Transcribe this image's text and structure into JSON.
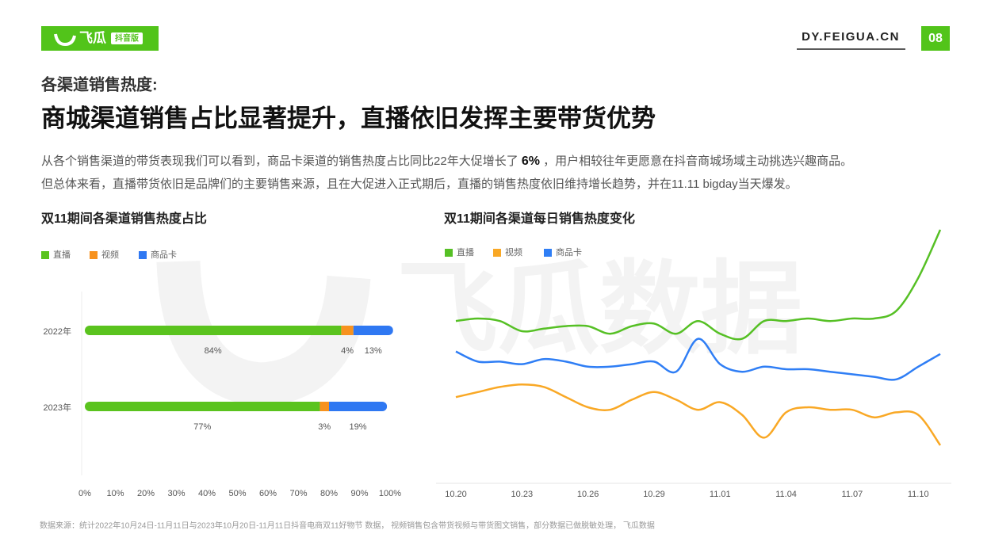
{
  "header": {
    "logo": "飞瓜",
    "logo_badge": "抖音版",
    "site": "DY.FEIGUA.CN",
    "page": "08"
  },
  "heading": {
    "kicker": "各渠道销售热度:",
    "title": "商城渠道销售占比显著提升，直播依旧发挥主要带货优势"
  },
  "intro": {
    "line1_before": "从各个销售渠道的带货表现我们可以看到，商品卡渠道的销售热度占比同比22年大促增长了 ",
    "highlight": "6%",
    "line1_after": " ，用户相较往年更愿意在抖音商城场域主动挑选兴趣商品。",
    "line2": "但总体来看，直播带货依旧是品牌们的主要销售来源，且在大促进入正式期后，直播的销售热度依旧维持增长趋势，并在11.11 bigday当天爆发。"
  },
  "watermark": "飞瓜数据",
  "source": "数据来源：统计2022年10月24日-11月11日与2023年10月20日-11月11日抖音电商双11好物节 数据， 视频销售包含带货视频与带货图文销售，部分数据已做脱敏处理， 飞瓜数据",
  "chart_data": [
    {
      "type": "bar",
      "orientation": "horizontal",
      "stacked": true,
      "title": "双11期间各渠道销售热度占比",
      "categories": [
        "2022年",
        "2023年"
      ],
      "series": [
        {
          "name": "直播",
          "color": "#5ac31e",
          "values": [
            84,
            77
          ],
          "value_labels": [
            "84%",
            "77%"
          ]
        },
        {
          "name": "视频",
          "color": "#f7921e",
          "values": [
            4,
            3
          ],
          "value_labels": [
            "4%",
            "3%"
          ]
        },
        {
          "name": "商品卡",
          "color": "#2f78f2",
          "values": [
            13,
            19
          ],
          "value_labels": [
            "13%",
            "19%"
          ]
        }
      ],
      "xlim": [
        0,
        100
      ],
      "xticks": [
        {
          "value": 0,
          "label": "0%"
        },
        {
          "value": 10,
          "label": "10%"
        },
        {
          "value": 20,
          "label": "20%"
        },
        {
          "value": 30,
          "label": "30%"
        },
        {
          "value": 40,
          "label": "40%"
        },
        {
          "value": 50,
          "label": "50%"
        },
        {
          "value": 60,
          "label": "60%"
        },
        {
          "value": 70,
          "label": "70%"
        },
        {
          "value": 80,
          "label": "80%"
        },
        {
          "value": 90,
          "label": "90%"
        },
        {
          "value": 100,
          "label": "100%"
        }
      ]
    },
    {
      "type": "line",
      "title": "双11期间各渠道每日销售热度变化",
      "categories": [
        "10.20",
        null,
        null,
        "10.23",
        null,
        null,
        "10.26",
        null,
        null,
        "10.29",
        null,
        null,
        "11.01",
        null,
        null,
        "11.04",
        null,
        null,
        "11.07",
        null,
        null,
        "11.10",
        null
      ],
      "series": [
        {
          "name": "直播",
          "color": "#56c025",
          "values": [
            64,
            65,
            64,
            60,
            61,
            62,
            62,
            59,
            62,
            63,
            59,
            64,
            59,
            57,
            64,
            64,
            65,
            64,
            65,
            65,
            68,
            81,
            100
          ]
        },
        {
          "name": "视频",
          "color": "#f9a825",
          "values": [
            34,
            36,
            38,
            39,
            38,
            34,
            30,
            29,
            33,
            36,
            33,
            29,
            32,
            27,
            18,
            28,
            30,
            29,
            29,
            26,
            28,
            27,
            15
          ]
        },
        {
          "name": "商品卡",
          "color": "#2f7ef5",
          "values": [
            52,
            48,
            48,
            47,
            49,
            48,
            46,
            46,
            47,
            48,
            44,
            57,
            47,
            44,
            46,
            45,
            45,
            44,
            43,
            42,
            41,
            46,
            51
          ]
        }
      ],
      "ylim": [
        0,
        100
      ]
    }
  ]
}
